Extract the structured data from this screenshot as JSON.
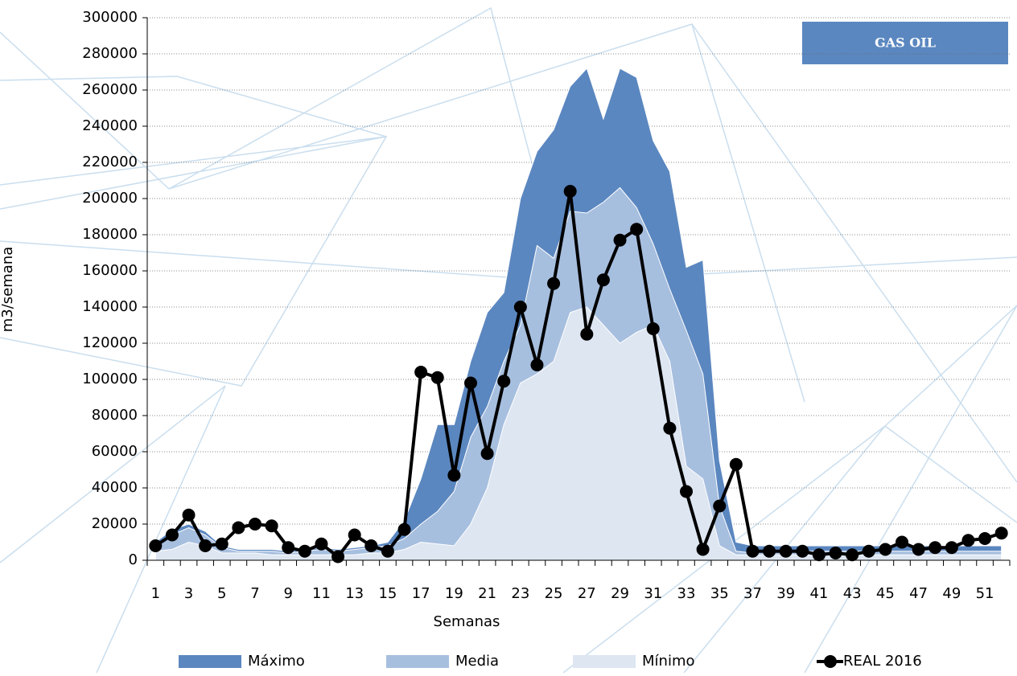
{
  "chart_data": {
    "type": "area-line",
    "title": "GAS OIL",
    "x_label": "Semanas",
    "y_label": "m3/semana",
    "categories": [
      1,
      null,
      3,
      null,
      5,
      null,
      7,
      null,
      9,
      null,
      11,
      null,
      13,
      null,
      15,
      null,
      17,
      null,
      19,
      null,
      21,
      null,
      23,
      null,
      25,
      null,
      27,
      null,
      29,
      null,
      31,
      null,
      33,
      null,
      35,
      null,
      37,
      null,
      39,
      null,
      41,
      null,
      43,
      null,
      45,
      null,
      47,
      null,
      49,
      null,
      51,
      null
    ],
    "ylim": [
      0,
      300000
    ],
    "yticks": [
      0,
      20000,
      40000,
      60000,
      80000,
      100000,
      120000,
      140000,
      160000,
      180000,
      200000,
      220000,
      240000,
      260000,
      280000,
      300000
    ],
    "grid": true,
    "series": [
      {
        "name": "Máximo",
        "kind": "area",
        "color": "#5b87c0",
        "values": [
          10000,
          17000,
          20000,
          16000,
          8000,
          6000,
          6000,
          6000,
          5000,
          6000,
          7000,
          6000,
          7000,
          8000,
          10000,
          22000,
          45000,
          75000,
          75000,
          110000,
          137000,
          148000,
          200000,
          226000,
          238000,
          262000,
          272000,
          244000,
          272000,
          267000,
          232000,
          215000,
          162000,
          166000,
          55000,
          10000,
          8000,
          8000,
          8000,
          8000,
          8000,
          8000,
          8000,
          8000,
          8000,
          8000,
          8000,
          8000,
          8000,
          8000,
          8000,
          8000
        ]
      },
      {
        "name": "Media",
        "kind": "area",
        "color": "#a7bfdf",
        "values": [
          8000,
          14000,
          18000,
          14000,
          7000,
          5000,
          5000,
          5000,
          4000,
          5000,
          6000,
          5000,
          6000,
          7000,
          8000,
          12000,
          20000,
          27000,
          38000,
          68000,
          85000,
          110000,
          130000,
          174000,
          167000,
          193000,
          192000,
          198000,
          206000,
          195000,
          175000,
          150000,
          127000,
          103000,
          30000,
          5000,
          4000,
          5000,
          5000,
          5000,
          5000,
          5000,
          5000,
          5000,
          5000,
          5000,
          5000,
          5000,
          5000,
          5000,
          5000,
          5000
        ]
      },
      {
        "name": "Mínimo",
        "kind": "area",
        "color": "#dde6f1",
        "values": [
          5000,
          6000,
          10000,
          8000,
          4000,
          4000,
          4000,
          3000,
          3000,
          3000,
          3000,
          3000,
          3000,
          4000,
          4000,
          6000,
          10000,
          9000,
          8000,
          20000,
          40000,
          75000,
          98000,
          103000,
          110000,
          137000,
          140000,
          130000,
          120000,
          126000,
          130000,
          110000,
          52000,
          45000,
          8000,
          3000,
          3000,
          3000,
          3000,
          3000,
          3000,
          3000,
          3000,
          3000,
          3000,
          3000,
          3000,
          3000,
          3000,
          3000,
          3000,
          3000
        ]
      },
      {
        "name": "REAL 2016",
        "kind": "line",
        "color": "#000000",
        "values": [
          8000,
          14000,
          25000,
          8000,
          9000,
          18000,
          20000,
          19000,
          7000,
          5000,
          9000,
          2000,
          14000,
          8000,
          5000,
          17000,
          104000,
          101000,
          47000,
          98000,
          59000,
          99000,
          140000,
          108000,
          153000,
          204000,
          125000,
          155000,
          177000,
          183000,
          128000,
          73000,
          38000,
          6000,
          30000,
          53000,
          5000,
          5000,
          5000,
          5000,
          3000,
          4000,
          3000,
          5000,
          6000,
          10000,
          6000,
          7000,
          7000,
          11000,
          12000,
          15000
        ]
      }
    ]
  }
}
